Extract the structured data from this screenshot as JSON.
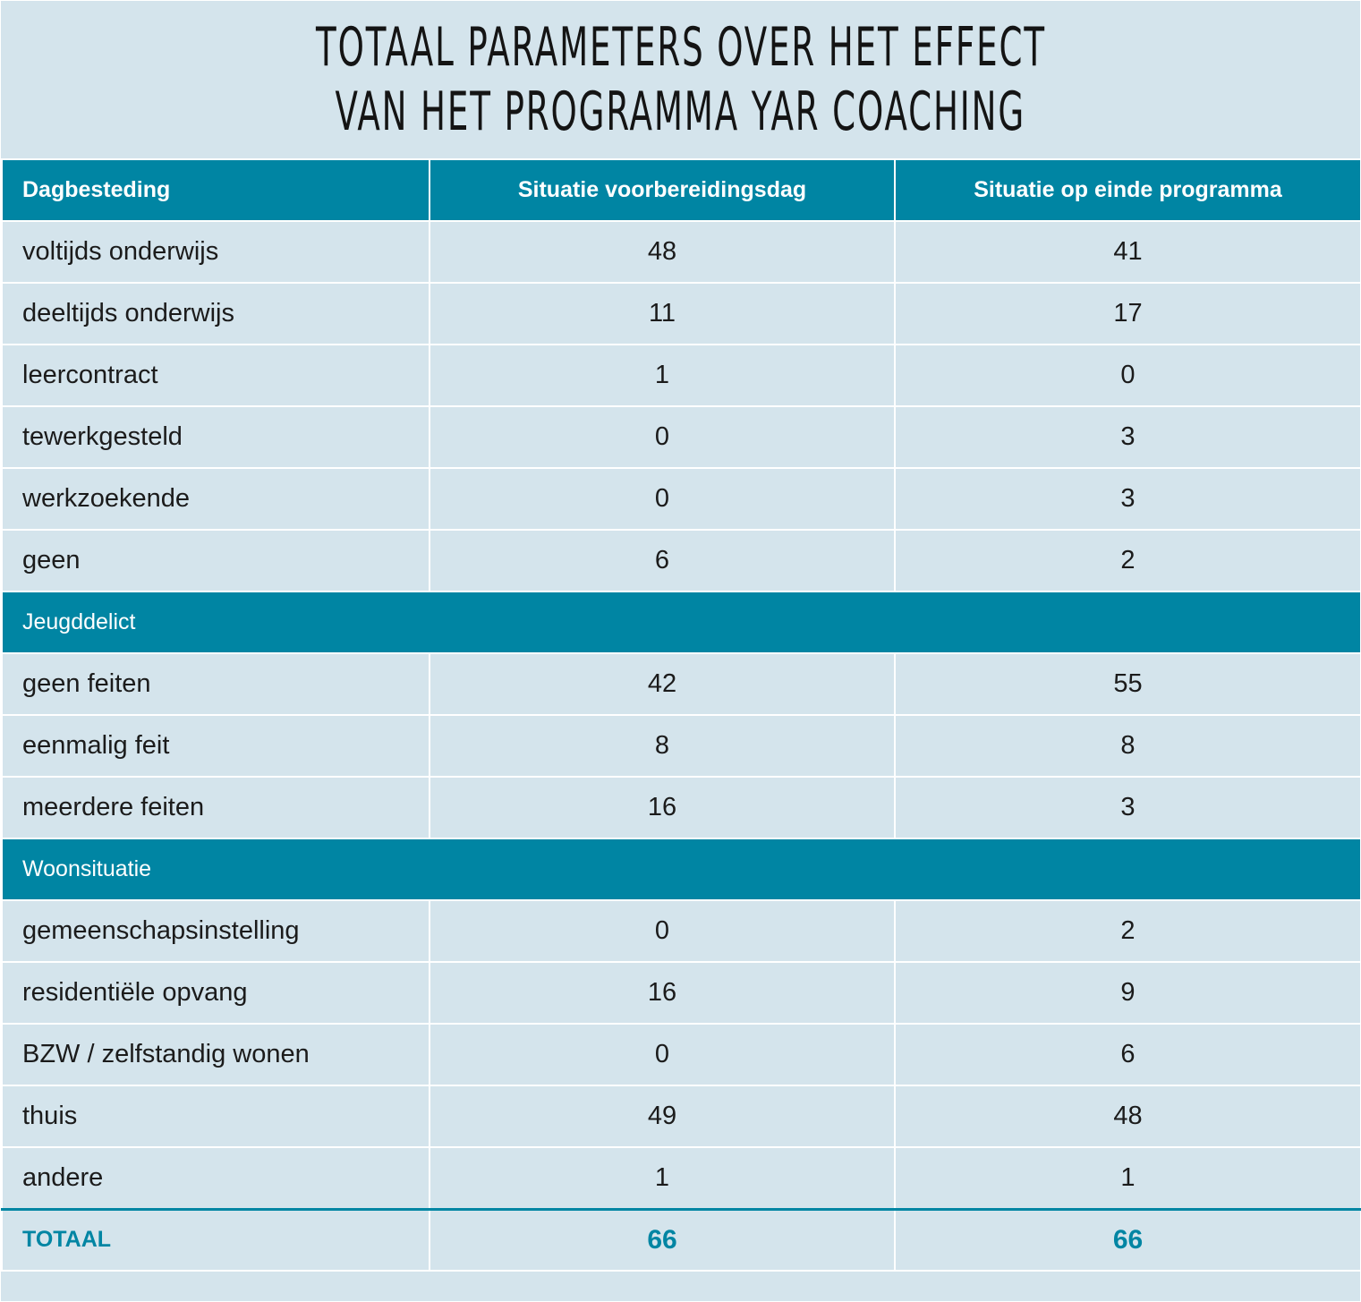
{
  "title": {
    "line1": "Totaal parameters over het effect",
    "line2": "van het programma YAR Coaching"
  },
  "header": {
    "col1": "Dagbesteding",
    "col2": "Situatie voorbereidingsdag",
    "col3": "Situatie op einde programma"
  },
  "dagbesteding": [
    {
      "label": "voltijds onderwijs",
      "before": "48",
      "after": "41"
    },
    {
      "label": "deeltijds onderwijs",
      "before": "11",
      "after": "17"
    },
    {
      "label": "leercontract",
      "before": "1",
      "after": "0"
    },
    {
      "label": "tewerkgesteld",
      "before": "0",
      "after": "3"
    },
    {
      "label": "werkzoekende",
      "before": "0",
      "after": "3"
    },
    {
      "label": "geen",
      "before": "6",
      "after": "2"
    }
  ],
  "section_jeugddelict": "Jeugddelict",
  "jeugddelict": [
    {
      "label": "geen feiten",
      "before": "42",
      "after": "55"
    },
    {
      "label": "eenmalig feit",
      "before": "8",
      "after": "8"
    },
    {
      "label": "meerdere feiten",
      "before": "16",
      "after": "3"
    }
  ],
  "section_woonsituatie": "Woonsituatie",
  "woonsituatie": [
    {
      "label": "gemeenschapsinstelling",
      "before": "0",
      "after": "2"
    },
    {
      "label": "residentiële opvang",
      "before": "16",
      "after": "9"
    },
    {
      "label": "BZW / zelfstandig wonen",
      "before": "0",
      "after": "6"
    },
    {
      "label": "thuis",
      "before": "49",
      "after": "48"
    },
    {
      "label": "andere",
      "before": "1",
      "after": "1"
    }
  ],
  "total": {
    "label": "TOTAAL",
    "before": "66",
    "after": "66"
  },
  "colors": {
    "accent": "#0085a3",
    "background": "#d4e4ec",
    "grid": "#ffffff"
  }
}
